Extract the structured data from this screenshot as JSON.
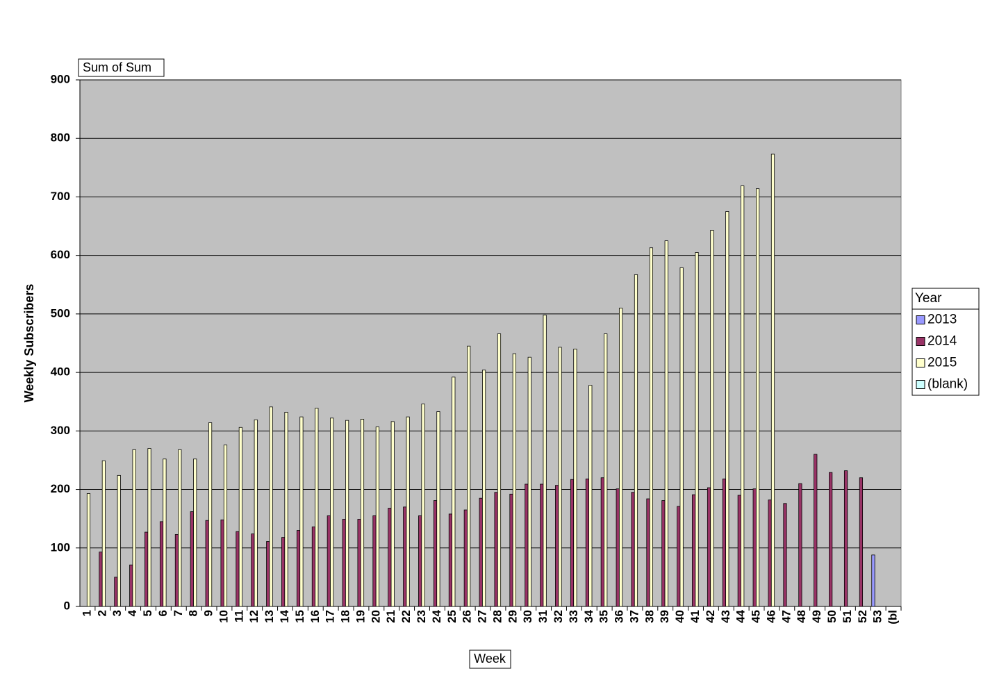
{
  "chart_data": {
    "type": "bar",
    "title": "Sum of Sum",
    "x_label": "Week",
    "y_label": "Weekly Subscribers",
    "legend_title": "Year",
    "legend": "right",
    "grid": true,
    "background": "#c0c0c0",
    "categories": [
      "1",
      "2",
      "3",
      "4",
      "5",
      "6",
      "7",
      "8",
      "9",
      "10",
      "11",
      "12",
      "13",
      "14",
      "15",
      "16",
      "17",
      "18",
      "19",
      "20",
      "21",
      "22",
      "23",
      "24",
      "25",
      "26",
      "27",
      "28",
      "29",
      "30",
      "31",
      "32",
      "33",
      "34",
      "35",
      "36",
      "37",
      "38",
      "39",
      "40",
      "41",
      "42",
      "43",
      "44",
      "45",
      "46",
      "47",
      "48",
      "49",
      "50",
      "51",
      "52",
      "53",
      "(bl"
    ],
    "ylim": [
      0,
      900
    ],
    "yticks": [
      0,
      100,
      200,
      300,
      400,
      500,
      600,
      700,
      800,
      900
    ],
    "series": [
      {
        "name": "2013",
        "color": "#9999ff",
        "values": [
          null,
          null,
          null,
          null,
          null,
          null,
          null,
          null,
          null,
          null,
          null,
          null,
          null,
          null,
          null,
          null,
          null,
          null,
          null,
          null,
          null,
          null,
          null,
          null,
          null,
          null,
          null,
          null,
          null,
          null,
          null,
          null,
          null,
          null,
          null,
          null,
          null,
          null,
          null,
          null,
          null,
          null,
          null,
          null,
          null,
          null,
          null,
          null,
          null,
          null,
          null,
          null,
          88,
          null
        ]
      },
      {
        "name": "2014",
        "color": "#993366",
        "values": [
          null,
          93,
          50,
          71,
          127,
          145,
          123,
          162,
          147,
          148,
          128,
          124,
          111,
          118,
          130,
          136,
          155,
          149,
          149,
          155,
          168,
          170,
          155,
          181,
          158,
          165,
          185,
          195,
          192,
          209,
          209,
          207,
          217,
          218,
          220,
          201,
          195,
          184,
          181,
          171,
          191,
          203,
          218,
          190,
          201,
          182,
          176,
          210,
          260,
          229,
          232,
          220,
          null,
          null
        ]
      },
      {
        "name": "2015",
        "color": "#ffffcc",
        "values": [
          193,
          249,
          224,
          268,
          270,
          252,
          268,
          252,
          314,
          276,
          306,
          319,
          341,
          332,
          324,
          339,
          322,
          318,
          320,
          307,
          316,
          324,
          346,
          333,
          392,
          445,
          404,
          466,
          432,
          426,
          498,
          443,
          440,
          378,
          466,
          510,
          567,
          613,
          625,
          579,
          605,
          643,
          675,
          719,
          714,
          773,
          null,
          null,
          null,
          null,
          null,
          null,
          null,
          null
        ]
      },
      {
        "name": "(blank)",
        "color": "#ccffff",
        "values": [
          null,
          null,
          null,
          null,
          null,
          null,
          null,
          null,
          null,
          null,
          null,
          null,
          null,
          null,
          null,
          null,
          null,
          null,
          null,
          null,
          null,
          null,
          null,
          null,
          null,
          null,
          null,
          null,
          null,
          null,
          null,
          null,
          null,
          null,
          null,
          null,
          null,
          null,
          null,
          null,
          null,
          null,
          null,
          null,
          null,
          null,
          null,
          null,
          null,
          null,
          null,
          null,
          null,
          null
        ]
      }
    ]
  }
}
